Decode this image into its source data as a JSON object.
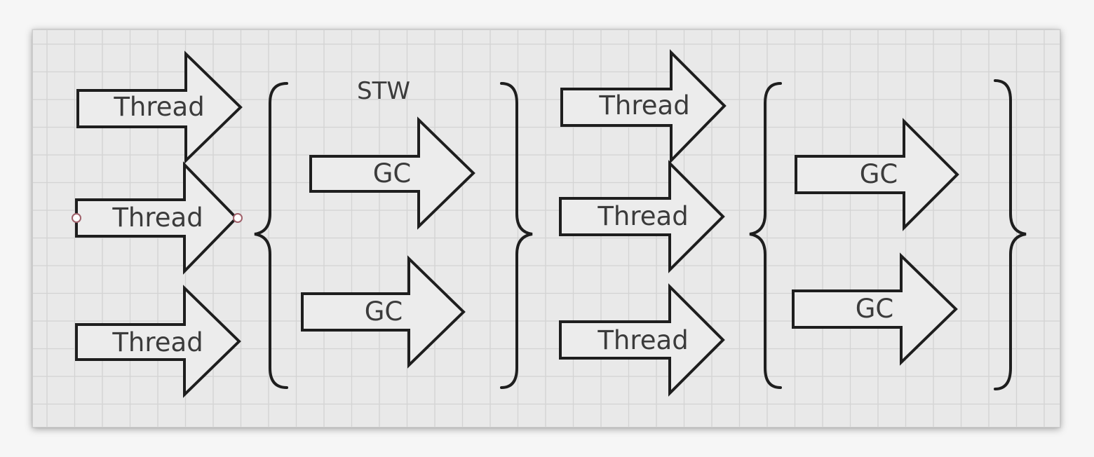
{
  "diagram": {
    "thread_label": "Thread",
    "gc_label": "GC",
    "stw_label": "STW",
    "colors": {
      "background": "#e9e9e9",
      "grid": "#d3d3d3",
      "stroke": "#1e1e1e",
      "text": "#3b3b3b",
      "handle": "#a0606a"
    }
  }
}
